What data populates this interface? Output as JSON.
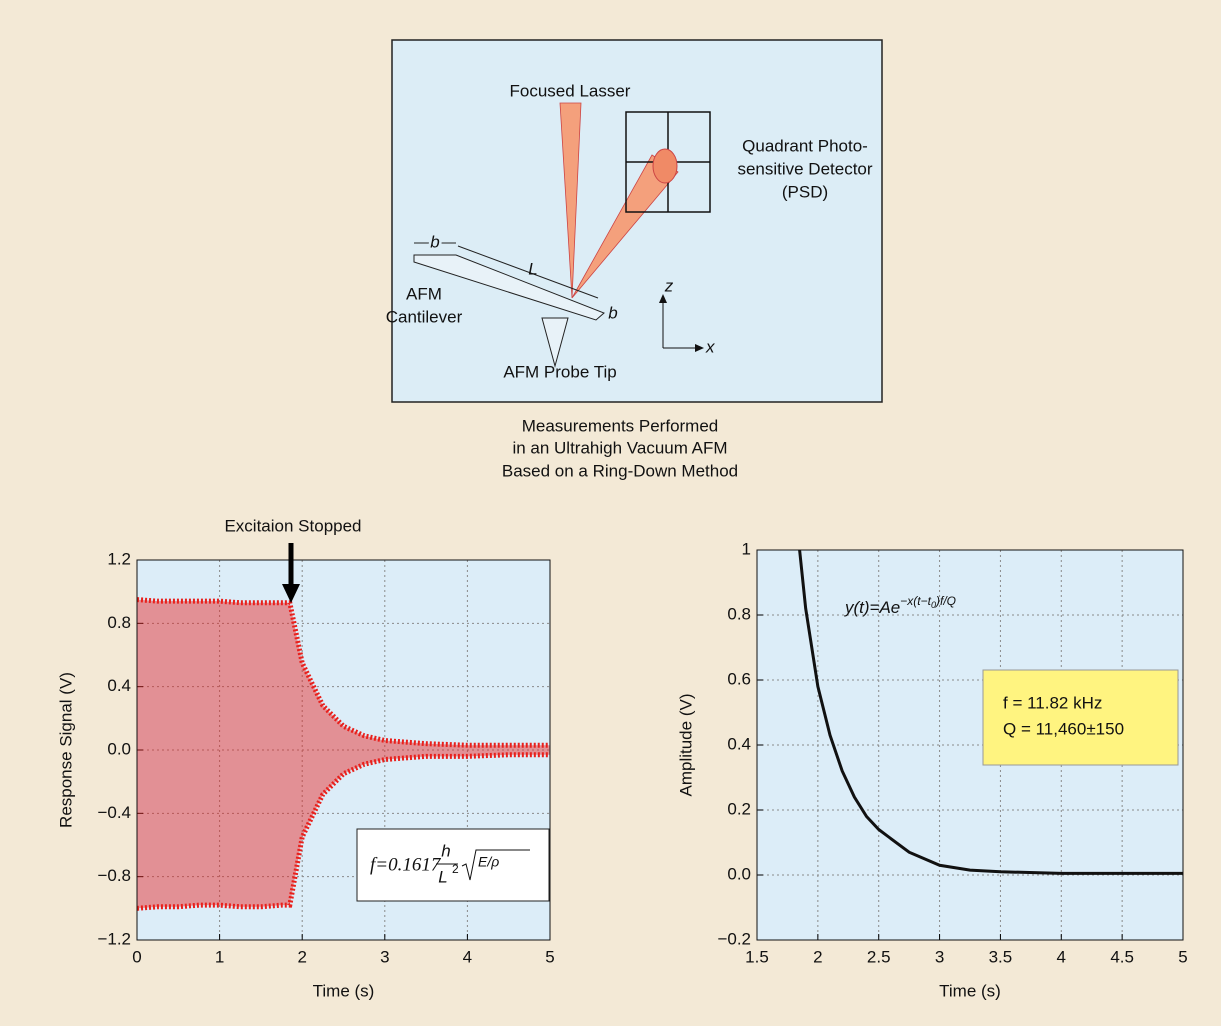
{
  "diagram": {
    "laser": "Focused Lasser",
    "detector": [
      "Quadrant Photo-",
      "sensitive Detector",
      "(PSD)"
    ],
    "width_label": "b",
    "length_label": "L",
    "thickness_label": "b",
    "cantilever": [
      "AFM",
      "Cantilever"
    ],
    "tip": "AFM Probe Tip",
    "z_axis": "z",
    "x_axis": "x",
    "caption": [
      "Measurements Performed",
      "in an Ultrahigh Vacuum AFM",
      "Based on a Ring-Down Method"
    ]
  },
  "chart_data": [
    {
      "type": "band",
      "xlabel": "Time (s)",
      "ylabel": "Response Signal (V)",
      "annotation": "Excitaion Stopped",
      "formula": {
        "prefix": "f=0.1617",
        "numerator": "h",
        "denominator": "L",
        "power": "2",
        "root": "E/ρ"
      },
      "x": [
        0,
        0.25,
        0.5,
        0.75,
        1,
        1.25,
        1.5,
        1.75,
        1.85,
        2,
        2.25,
        2.5,
        2.75,
        3,
        3.5,
        4,
        4.5,
        5
      ],
      "series": [
        {
          "color": "#e8201c",
          "values": [
            0.95,
            0.94,
            0.94,
            0.94,
            0.94,
            0.93,
            0.93,
            0.93,
            0.93,
            0.55,
            0.28,
            0.15,
            0.09,
            0.06,
            0.04,
            0.03,
            0.03,
            0.03
          ]
        },
        {
          "color": "#e8201c",
          "values": [
            -1.0,
            -0.99,
            -0.99,
            -0.98,
            -0.98,
            -0.99,
            -0.99,
            -0.98,
            -0.98,
            -0.55,
            -0.28,
            -0.15,
            -0.09,
            -0.06,
            -0.04,
            -0.04,
            -0.03,
            -0.03
          ]
        }
      ],
      "xlim": [
        0,
        5
      ],
      "xticks": [
        0,
        1,
        2,
        3,
        4,
        5
      ],
      "ylim": [
        -1.2,
        1.2
      ],
      "yticks": [
        {
          "value": -1.2,
          "label": "−1.2"
        },
        {
          "value": -0.8,
          "label": "−0.8"
        },
        {
          "value": -0.4,
          "label": "−0.4"
        },
        {
          "value": 0,
          "label": "0.0"
        },
        0.4,
        0.8,
        1.2
      ],
      "grid": true
    },
    {
      "type": "line",
      "xlabel": "Time (s)",
      "ylabel": "Amplitude (V)",
      "equation": {
        "base": "y(t)=Ae",
        "exponent": "−x(t−t",
        "subscript": "0",
        "exponent_end": ")f/Q"
      },
      "box": {
        "f": "f = 11.82 kHz",
        "q": "Q = 11,460±150"
      },
      "x": [
        1.85,
        1.9,
        2,
        2.1,
        2.2,
        2.3,
        2.4,
        2.5,
        2.75,
        3,
        3.25,
        3.5,
        4,
        4.5,
        5
      ],
      "series": [
        {
          "color": "#111111",
          "values": [
            1.0,
            0.82,
            0.58,
            0.43,
            0.32,
            0.24,
            0.18,
            0.14,
            0.07,
            0.03,
            0.015,
            0.01,
            0.005,
            0.005,
            0.005
          ]
        }
      ],
      "xlim": [
        1.5,
        5
      ],
      "xticks": [
        1.5,
        2,
        2.5,
        3,
        3.5,
        4,
        4.5,
        5
      ],
      "ylim": [
        -0.2,
        1
      ],
      "yticks": [
        {
          "value": -0.2,
          "label": "−0.2"
        },
        {
          "value": 0,
          "label": "0.0"
        },
        0.2,
        0.4,
        0.6,
        0.8,
        1
      ],
      "grid": true
    }
  ]
}
